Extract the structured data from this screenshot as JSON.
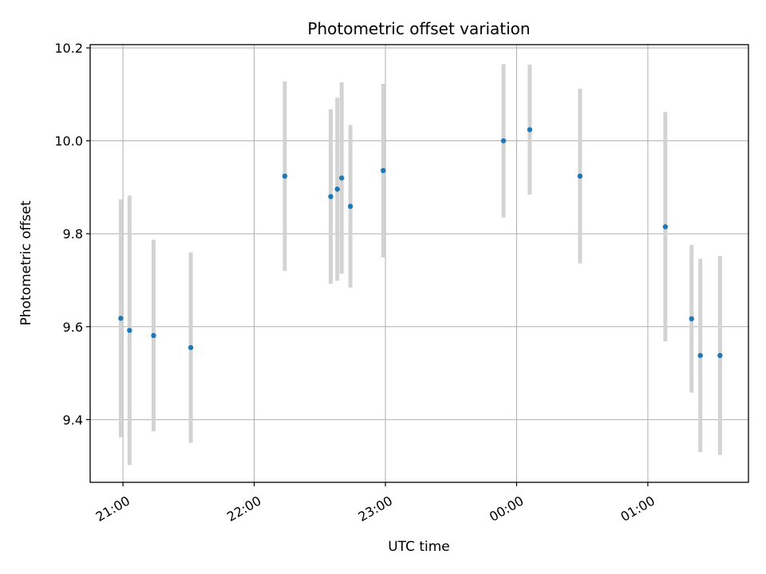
{
  "chart_data": {
    "type": "scatter",
    "title": "Photometric offset variation",
    "xlabel": "UTC time",
    "ylabel": "Photometric offset",
    "x_axis": {
      "kind": "time",
      "range": [
        "20:45",
        "01:46"
      ],
      "ticks": [
        "21:00",
        "22:00",
        "23:00",
        "00:00",
        "01:00"
      ]
    },
    "y_axis": {
      "range": [
        9.265,
        10.207
      ],
      "ticks": [
        "9.4",
        "9.6",
        "9.8",
        "10.0",
        "10.2"
      ]
    },
    "grid": true,
    "series": [
      {
        "marker_color": "#1f77b4",
        "errorbar_color": "#d3d3d3",
        "points": [
          {
            "x": "20:59",
            "y": 9.618,
            "yerr": 0.256
          },
          {
            "x": "21:03",
            "y": 9.592,
            "yerr": 0.29
          },
          {
            "x": "21:14",
            "y": 9.581,
            "yerr": 0.206
          },
          {
            "x": "21:31",
            "y": 9.555,
            "yerr": 0.205
          },
          {
            "x": "22:14",
            "y": 9.924,
            "yerr": 0.204
          },
          {
            "x": "22:35",
            "y": 9.88,
            "yerr": 0.188
          },
          {
            "x": "22:38",
            "y": 9.896,
            "yerr": 0.197
          },
          {
            "x": "22:40",
            "y": 9.92,
            "yerr": 0.206
          },
          {
            "x": "22:44",
            "y": 9.859,
            "yerr": 0.175
          },
          {
            "x": "22:59",
            "y": 9.936,
            "yerr": 0.187
          },
          {
            "x": "23:54",
            "y": 10.0,
            "yerr": 0.165
          },
          {
            "x": "00:06",
            "y": 10.024,
            "yerr": 0.14
          },
          {
            "x": "00:29",
            "y": 9.924,
            "yerr": 0.188
          },
          {
            "x": "01:08",
            "y": 9.815,
            "yerr": 0.247
          },
          {
            "x": "01:20",
            "y": 9.617,
            "yerr": 0.159
          },
          {
            "x": "01:24",
            "y": 9.538,
            "yerr": 0.208
          },
          {
            "x": "01:33",
            "y": 9.538,
            "yerr": 0.214
          }
        ]
      }
    ]
  }
}
